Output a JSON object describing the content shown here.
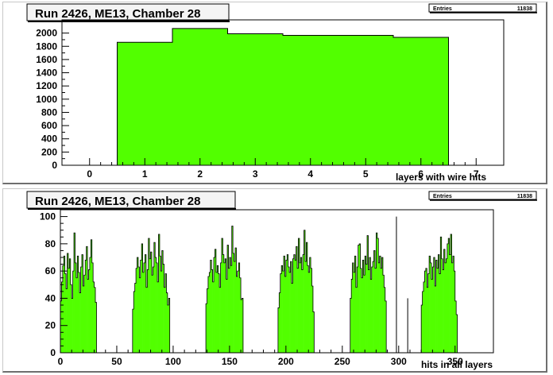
{
  "colors": {
    "fill": "#52ff00",
    "edge": "#000000",
    "frame": "#000000"
  },
  "chart_data": [
    {
      "type": "bar",
      "title": "Run 2426, ME13, Chamber 28",
      "stats": {
        "label": "Entries",
        "value": "11838"
      },
      "xlabel": "layers with wire hits",
      "ylabel": "",
      "xlim": [
        -0.5,
        7.5
      ],
      "ylim": [
        0,
        2200
      ],
      "x_ticks": [
        0,
        1,
        2,
        3,
        4,
        5,
        6,
        7
      ],
      "y_ticks": [
        0,
        200,
        400,
        600,
        800,
        1000,
        1200,
        1400,
        1600,
        1800,
        2000
      ],
      "bin_edges": [
        0.5,
        1.5,
        2.5,
        3.5,
        4.5,
        5.5,
        6.5
      ],
      "values": [
        1860,
        2070,
        1990,
        1965,
        1965,
        1935
      ]
    },
    {
      "type": "bar",
      "title": "Run 2426, ME13, Chamber 28",
      "stats": {
        "label": "Entries",
        "value": "11838"
      },
      "xlabel": "hits in all layers",
      "ylabel": "",
      "xlim": [
        0,
        384
      ],
      "ylim": [
        0,
        105
      ],
      "x_ticks": [
        0,
        50,
        100,
        150,
        200,
        250,
        300,
        350
      ],
      "y_ticks": [
        0,
        20,
        40,
        60,
        80,
        100
      ],
      "bin_width": 1,
      "clusters": [
        {
          "start": 0,
          "values": [
            38,
            52,
            64,
            71,
            58,
            47,
            73,
            62,
            69,
            50,
            40,
            60,
            88,
            66,
            55,
            71,
            59,
            44,
            63,
            72,
            49,
            57,
            68,
            78,
            54,
            61,
            70,
            83,
            66,
            52,
            48,
            37
          ]
        },
        {
          "start": 64,
          "values": [
            32,
            45,
            51,
            62,
            70,
            63,
            55,
            68,
            80,
            59,
            66,
            72,
            48,
            61,
            84,
            69,
            74,
            57,
            63,
            81,
            70,
            66,
            52,
            87,
            71,
            60,
            75,
            65,
            48,
            58,
            44,
            35,
            40
          ]
        },
        {
          "start": 129,
          "values": [
            36,
            47,
            56,
            59,
            68,
            61,
            52,
            70,
            76,
            59,
            64,
            58,
            48,
            66,
            84,
            72,
            66,
            69,
            54,
            79,
            62,
            70,
            64,
            93,
            73,
            67,
            77,
            56,
            60,
            66,
            55,
            39,
            40
          ]
        },
        {
          "start": 193,
          "values": [
            33,
            44,
            58,
            64,
            60,
            71,
            56,
            68,
            72,
            63,
            59,
            67,
            51,
            69,
            72,
            68,
            78,
            62,
            84,
            66,
            70,
            61,
            72,
            90,
            67,
            81,
            64,
            59,
            70,
            62,
            49,
            30
          ]
        },
        {
          "start": 257,
          "values": [
            40,
            54,
            66,
            59,
            71,
            48,
            63,
            79,
            80,
            62,
            55,
            68,
            57,
            71,
            65,
            86,
            61,
            70,
            54,
            63,
            67,
            75,
            62,
            88,
            84,
            66,
            71,
            62,
            70,
            57,
            48,
            38
          ]
        },
        {
          "start": 320,
          "values": [
            35,
            45,
            52,
            60,
            62,
            48,
            58,
            71,
            66,
            54,
            63,
            70,
            49,
            68,
            62,
            72,
            58,
            85,
            69,
            61,
            76,
            66,
            69,
            80,
            84,
            72,
            87,
            66,
            71,
            60,
            38,
            28
          ]
        }
      ],
      "outline_spikes": [
        {
          "x": 308,
          "value": 40
        },
        {
          "x": 298,
          "value": 100
        }
      ]
    }
  ]
}
